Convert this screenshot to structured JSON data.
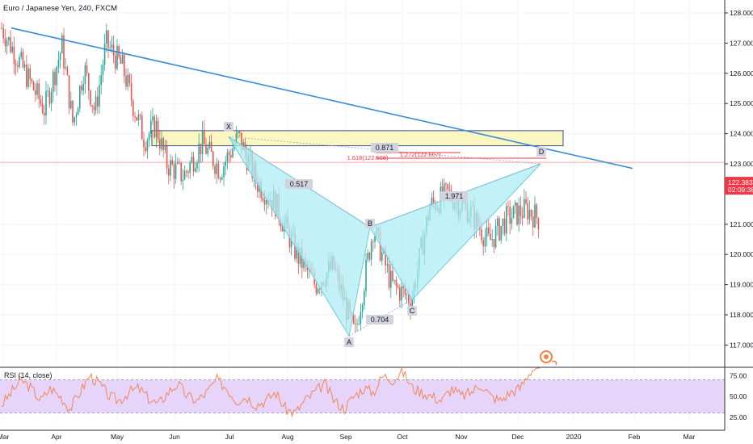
{
  "header": {
    "symbol_title": "Euro / Japanese Yen, 240, FXCM"
  },
  "rsi": {
    "label": "RSI (14, close)",
    "ticks": [
      "75.00",
      "50.00",
      "25.00"
    ],
    "levels": [
      70,
      30
    ],
    "band_color": "#e6d4fb",
    "line_color": "#f57f45",
    "ylim": [
      20,
      85
    ]
  },
  "price_axis": {
    "ticks": [
      "128.000",
      "127.000",
      "126.000",
      "125.000",
      "124.000",
      "123.000",
      "121.000",
      "120.000",
      "119.000",
      "118.000",
      "117.000"
    ],
    "current_price": "122.383",
    "countdown": "02:09:38",
    "badge_color": "#f23645"
  },
  "time_axis": {
    "labels": [
      "Mar",
      "Apr",
      "May",
      "Jun",
      "Jul",
      "Aug",
      "Sep",
      "Oct",
      "Nov",
      "Dec",
      "2020",
      "Feb",
      "Mar"
    ]
  },
  "pattern": {
    "points": {
      "X": "X",
      "A": "A",
      "B": "B",
      "C": "C",
      "D": "D"
    },
    "ratios": {
      "xab": "0.517",
      "abc": "0.704",
      "bcd": "1.971",
      "xad": "0.871"
    },
    "projections": {
      "fib_1618": "1.618(122.508)",
      "fib_1272": "1.272(122.667)"
    },
    "fill_color": "#aeecf4"
  },
  "zone_color": "#fbf7c3",
  "trendline_color": "#3a8ad9",
  "chart_data": {
    "type": "candlestick",
    "instrument": "Euro / Japanese Yen",
    "interval": "240",
    "source": "FXCM",
    "ylim": [
      116.6,
      128.3
    ],
    "x": [
      "Mar",
      "Apr",
      "May",
      "Jun",
      "Jul",
      "Aug",
      "Sep",
      "Oct",
      "Nov",
      "Dec",
      "2020",
      "Feb",
      "Mar"
    ],
    "price_path": [
      {
        "t": "Mar",
        "p": 127.5
      },
      {
        "t": "Mar",
        "p": 124.8
      },
      {
        "t": "Apr",
        "p": 126.9
      },
      {
        "t": "Apr",
        "p": 124.3
      },
      {
        "t": "Apr",
        "p": 126.2
      },
      {
        "t": "Apr",
        "p": 124.7
      },
      {
        "t": "Apr",
        "p": 127.0
      },
      {
        "t": "May",
        "p": 126.2
      },
      {
        "t": "May",
        "p": 124.9
      },
      {
        "t": "May",
        "p": 123.8
      },
      {
        "t": "May",
        "p": 124.3
      },
      {
        "t": "May",
        "p": 123.0
      },
      {
        "t": "Jun",
        "p": 122.6
      },
      {
        "t": "Jun",
        "p": 123.7
      },
      {
        "t": "Jun",
        "p": 122.8
      },
      {
        "t": "Jul",
        "p": 123.9
      },
      {
        "t": "Jul",
        "p": 122.4
      },
      {
        "t": "Jul",
        "p": 121.7
      },
      {
        "t": "Aug",
        "p": 120.0
      },
      {
        "t": "Aug",
        "p": 119.0
      },
      {
        "t": "Aug",
        "p": 119.6
      },
      {
        "t": "Sep",
        "p": 117.3
      },
      {
        "t": "Sep",
        "p": 120.9
      },
      {
        "t": "Sep",
        "p": 119.0
      },
      {
        "t": "Oct",
        "p": 118.5
      },
      {
        "t": "Oct",
        "p": 121.6
      },
      {
        "t": "Oct",
        "p": 122.0
      },
      {
        "t": "Nov",
        "p": 121.4
      },
      {
        "t": "Nov",
        "p": 120.4
      },
      {
        "t": "Nov",
        "p": 121.2
      },
      {
        "t": "Dec",
        "p": 121.5
      },
      {
        "t": "Dec",
        "p": 121.0
      },
      {
        "t": "Dec",
        "p": 123.0
      }
    ],
    "harmonic_pattern": {
      "X": {
        "t": "Jul",
        "p": 123.9
      },
      "A": {
        "t": "Sep",
        "p": 117.3
      },
      "B": {
        "t": "Sep",
        "p": 120.9
      },
      "C": {
        "t": "Oct",
        "p": 118.5
      },
      "D": {
        "t": "Dec",
        "p": 123.0
      }
    },
    "trendline": [
      {
        "t": "Mar",
        "p": 127.5
      },
      {
        "t": "Feb",
        "p": 122.85
      }
    ],
    "zone": {
      "from": "Jun",
      "to": "2020",
      "top": 124.1,
      "bottom": 123.6
    },
    "horizontal_line": 123.05,
    "last_price": 122.383,
    "rsi_path": [
      40,
      55,
      70,
      60,
      45,
      60,
      50,
      35,
      55,
      75,
      65,
      50,
      45,
      55,
      60,
      48,
      40,
      55,
      65,
      50,
      45,
      55,
      70,
      60,
      45,
      50,
      40,
      45,
      55,
      35,
      30,
      45,
      55,
      65,
      45,
      35,
      50,
      60,
      55,
      75,
      70,
      80,
      60,
      55,
      50,
      45,
      60,
      50,
      55,
      65,
      50,
      45,
      55,
      60,
      80,
      88
    ]
  }
}
